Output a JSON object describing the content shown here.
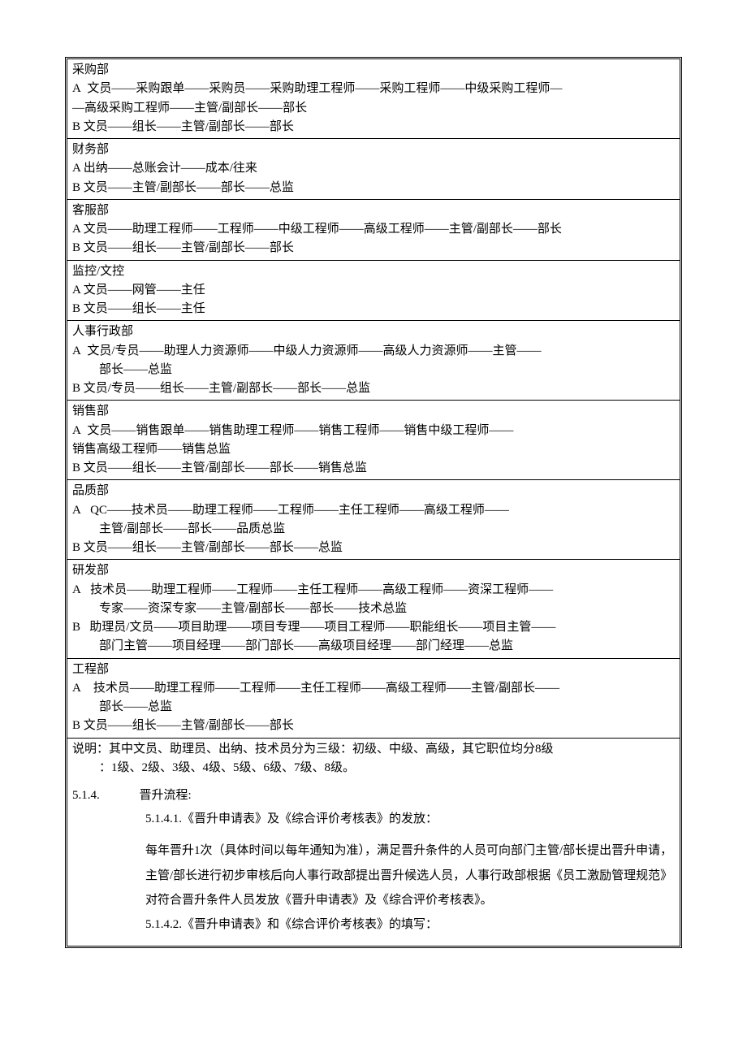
{
  "colors": {
    "text": "#000000",
    "background": "#ffffff",
    "border": "#000000"
  },
  "typography": {
    "font_family": "SimSun",
    "base_size_pt": 11
  },
  "departments": [
    {
      "name": "采购部",
      "paths": [
        "A  文员——采购跟单——采购员——采购助理工程师——采购工程师——中级采购工程师——高级采购工程师——主管/副部长——部长",
        "B  文员——组长——主管/副部长——部长"
      ]
    },
    {
      "name": "财务部",
      "paths": [
        "A 出纳——总账会计——成本/往来",
        "B  文员——主管/副部长——部长——总监"
      ]
    },
    {
      "name": "客服部",
      "paths": [
        "A  文员——助理工程师——工程师——中级工程师——高级工程师——主管/副部长——部长",
        "B  文员——组长——主管/副部长——部长"
      ]
    },
    {
      "name": "监控/文控",
      "paths": [
        "A 文员——网管——主任",
        "B 文员——组长——主任"
      ]
    },
    {
      "name": "人事行政部",
      "paths": [
        "A  文员/专员——助理人力资源师——中级人力资源师——高级人力资源师——主管——部长——总监",
        "B  文员/专员——组长——主管/副部长——部长——总监"
      ]
    },
    {
      "name": "销售部",
      "paths": [
        "A  文员——销售跟单——销售助理工程师——销售工程师——销售中级工程师——销售高级工程师——销售总监",
        "B   文员——组长——主管/副部长——部长——销售总监"
      ]
    },
    {
      "name": "品质部",
      "paths": [
        "A   QC——技术员——助理工程师——工程师——主任工程师——高级工程师——主管/副部长——部长——品质总监",
        "B   文员——组长——主管/副部长——部长——总监"
      ]
    },
    {
      "name": "研发部",
      "paths": [
        "A   技术员——助理工程师——工程师——主任工程师——高级工程师——资深工程师——专家——资深专家——主管/副部长——部长——技术总监",
        "B   助理员/文员——项目助理——项目专理——项目工程师——职能组长——项目主管——部门主管——项目经理——部门部长——高级项目经理——部门经理——总监"
      ]
    },
    {
      "name": "工程部",
      "paths": [
        "A    技术员——助理工程师——工程师——主任工程师——高级工程师——主管/副部长——部长——总监",
        "B    文员——组长——主管/副部长——部长"
      ]
    }
  ],
  "note": "说明：其中文员、助理员、出纳、技术员分为三级：初级、中级、高级，其它职位均分8级：1级、2级、3级、4级、5级、6级、7级、8级。",
  "section_514": {
    "number": "5.1.4.",
    "title": "晋升流程:",
    "sub1_number": "5.1.4.1.",
    "sub1_title": "《晋升申请表》及《综合评价考核表》的发放：",
    "sub1_body": "每年晋升1次（具体时间以每年通知为准），满足晋升条件的人员可向部门主管/部长提出晋升申请，主管/部长进行初步审核后向人事行政部提出晋升候选人员，人事行政部根据《员工激励管理规范》对符合晋升条件人员发放《晋升申请表》及《综合评价考核表》。",
    "sub2_number": "5.1.4.2.",
    "sub2_title": "《晋升申请表》和《综合评价考核表》的填写："
  }
}
